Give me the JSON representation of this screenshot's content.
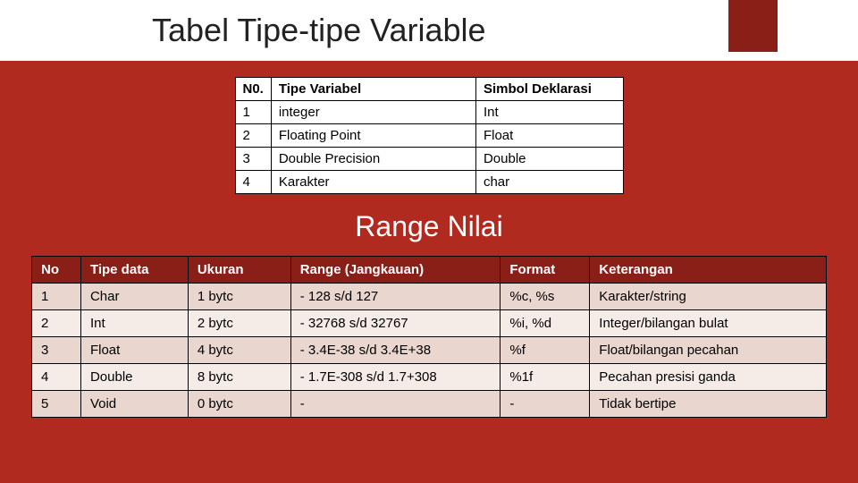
{
  "title": "Tabel Tipe-tipe Variable",
  "subtitle": "Range Nilai",
  "colors": {
    "page_bg": "#b02a20",
    "accent_block": "#8a1f18",
    "title_bg": "#ffffff",
    "table_border": "#000000",
    "table1_bg": "#ffffff",
    "table2_header_bg": "#8a1f18",
    "table2_header_fg": "#ffffff",
    "table2_row_odd": "#e9d6ce",
    "table2_row_even": "#f5ece7"
  },
  "table1": {
    "columns": [
      "N0.",
      "Tipe Variabel",
      "Simbol Deklarasi"
    ],
    "rows": [
      [
        "1",
        "integer",
        "Int"
      ],
      [
        "2",
        "Floating Point",
        "Float"
      ],
      [
        "3",
        "Double Precision",
        "Double"
      ],
      [
        "4",
        "Karakter",
        "char"
      ]
    ]
  },
  "table2": {
    "columns": [
      "No",
      "Tipe data",
      "Ukuran",
      "Range (Jangkauan)",
      "Format",
      "Keterangan"
    ],
    "rows": [
      [
        "1",
        "Char",
        "1 bytc",
        "- 128 s/d 127",
        "%c, %s",
        "Karakter/string"
      ],
      [
        "2",
        "Int",
        "2 bytc",
        "- 32768 s/d 32767",
        "%i, %d",
        "Integer/bilangan bulat"
      ],
      [
        "3",
        "Float",
        "4 bytc",
        "- 3.4E-38 s/d 3.4E+38",
        "%f",
        "Float/bilangan pecahan"
      ],
      [
        "4",
        "Double",
        "8 bytc",
        "- 1.7E-308 s/d 1.7+308",
        "%1f",
        "Pecahan presisi ganda"
      ],
      [
        "5",
        "Void",
        "0 bytc",
        "-",
        "-",
        "Tidak bertipe"
      ]
    ]
  }
}
